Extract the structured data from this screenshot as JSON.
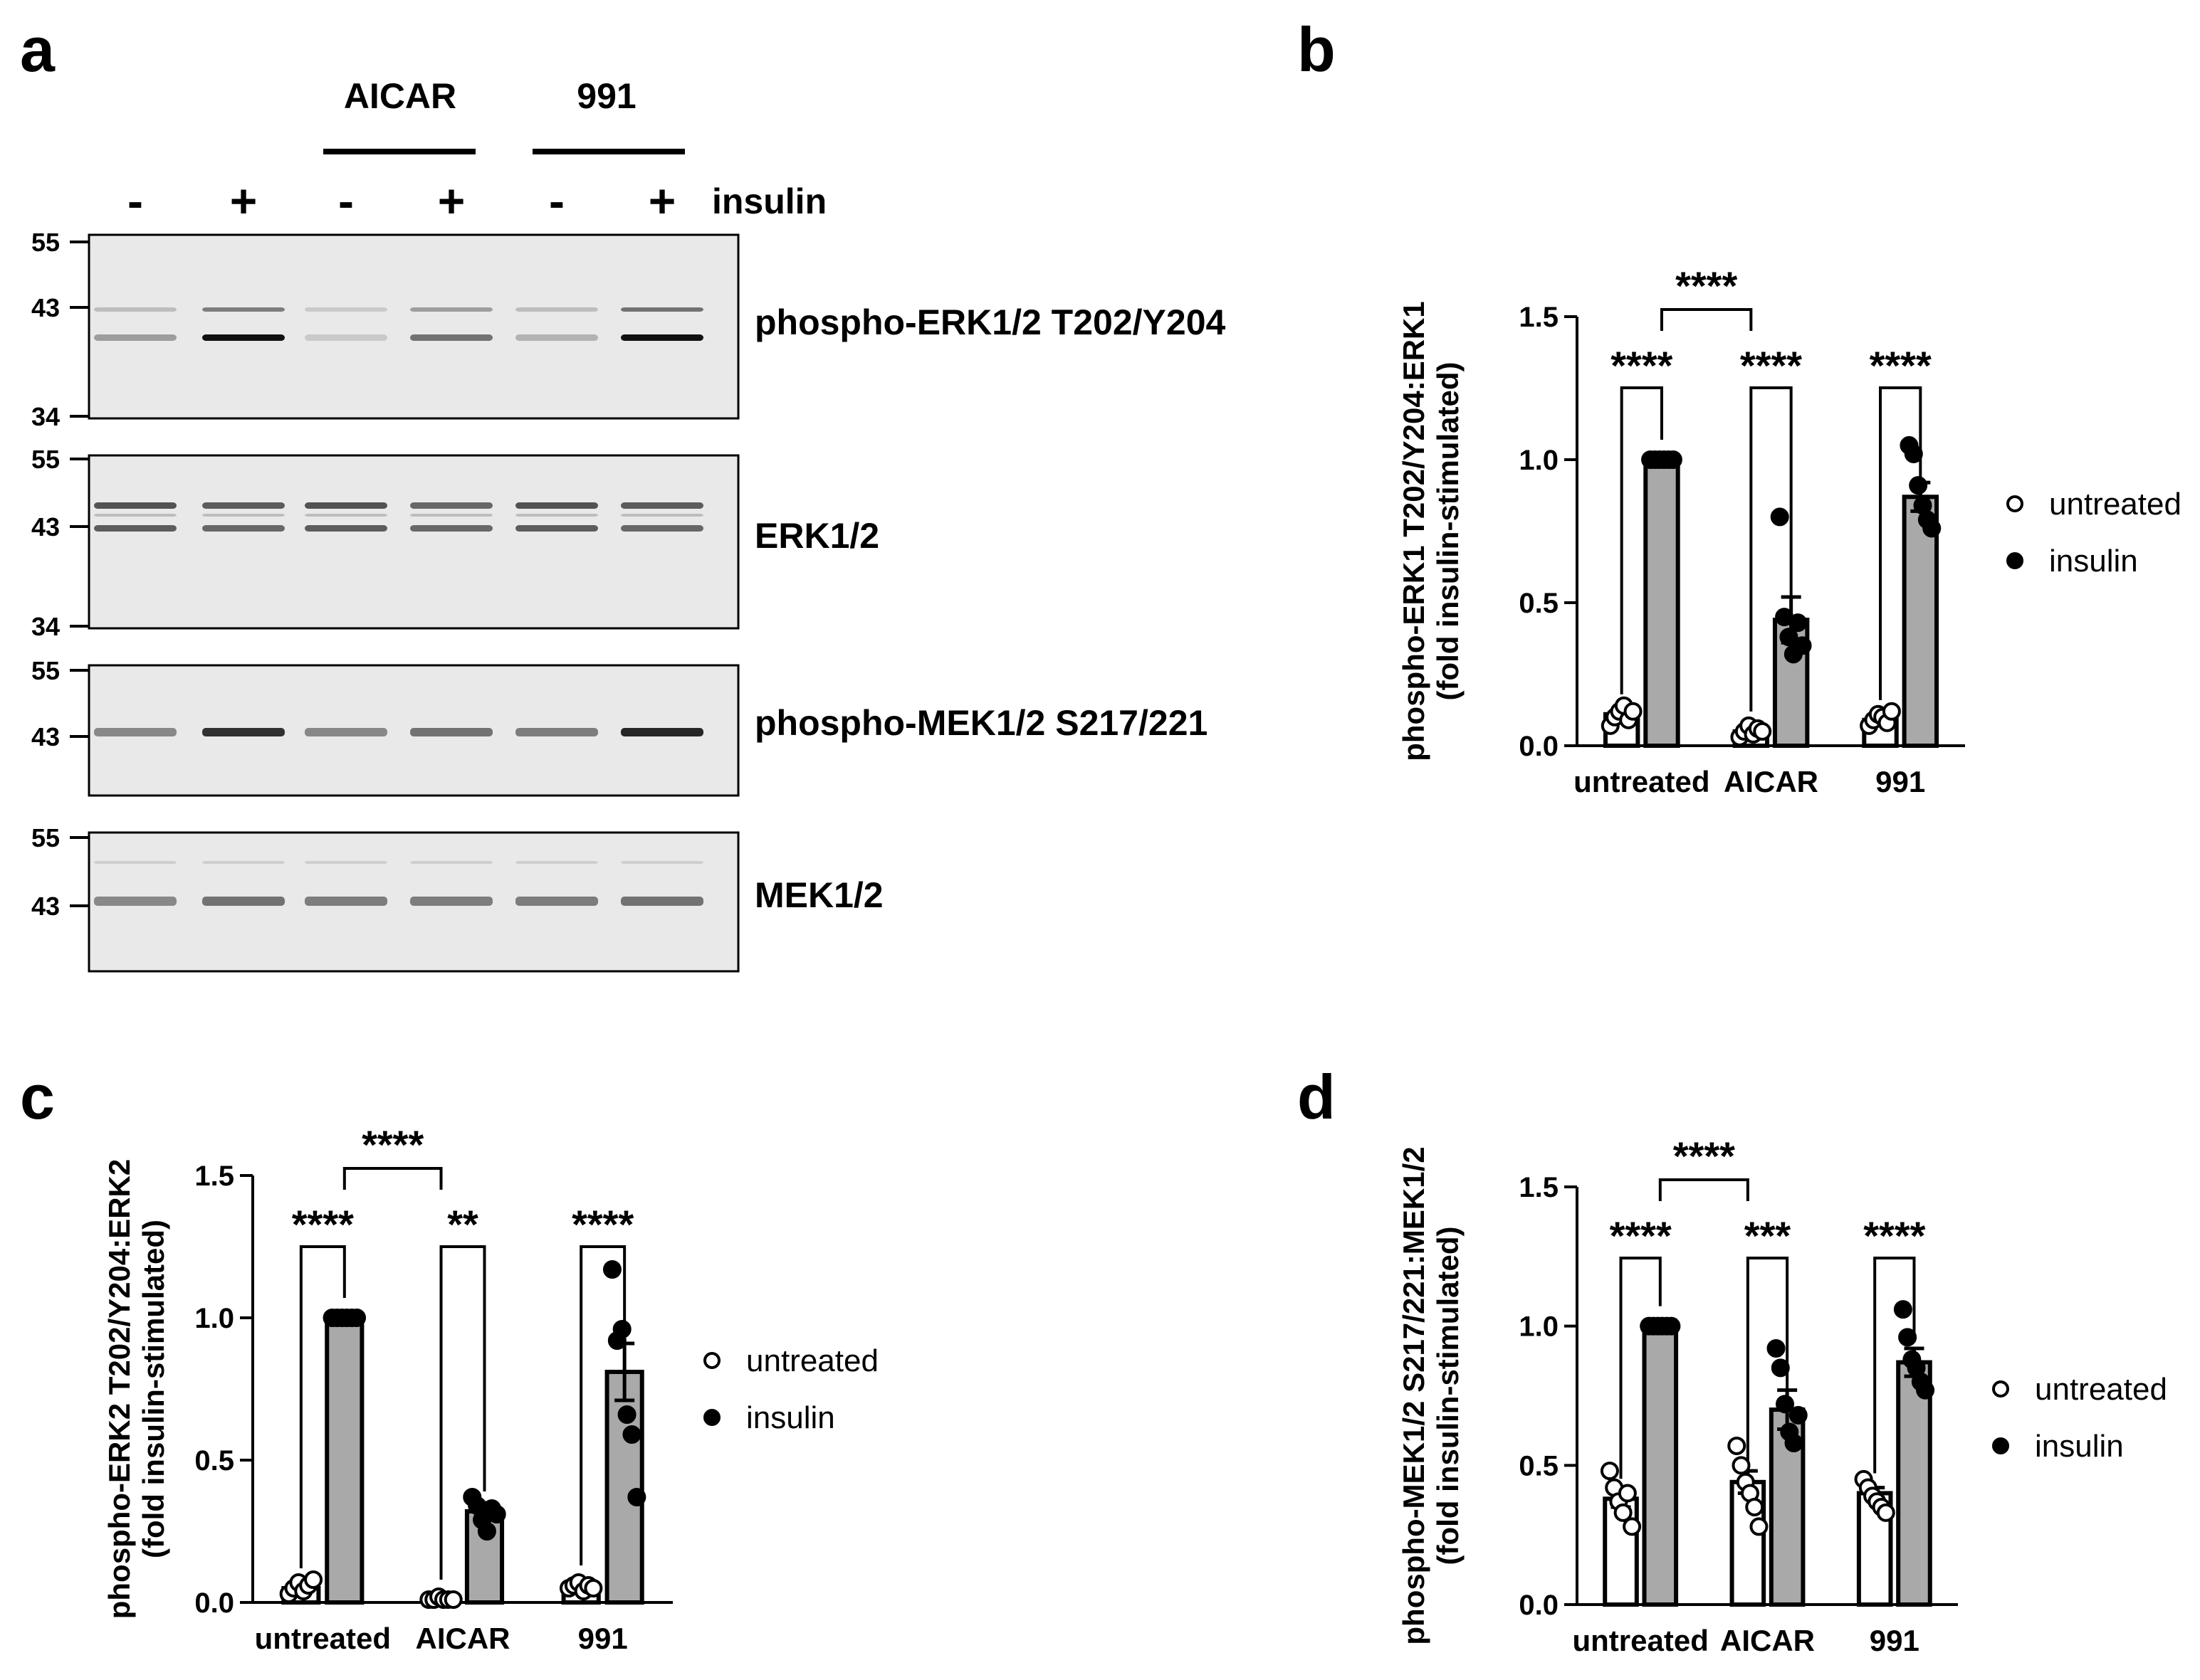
{
  "panels": {
    "a": "a",
    "b": "b",
    "c": "c",
    "d": "d"
  },
  "blot": {
    "group_headers": [
      "AICAR",
      "991"
    ],
    "insulin_signs": [
      "-",
      "+",
      "-",
      "+",
      "-",
      "+"
    ],
    "insulin_label": "insulin",
    "blots": [
      {
        "label": "phospho-ERK1/2 T202/Y204",
        "markers": [
          "55",
          "43",
          "34"
        ]
      },
      {
        "label": "ERK1/2",
        "markers": [
          "55",
          "43",
          "34"
        ]
      },
      {
        "label": "phospho-MEK1/2 S217/221",
        "markers": [
          "55",
          "43"
        ]
      },
      {
        "label": "MEK1/2",
        "markers": [
          "55",
          "43"
        ]
      }
    ],
    "colors": {
      "blot_bg": "#e6e6e6",
      "band": "#1a1a1a"
    }
  },
  "chart_data": [
    {
      "panel": "b",
      "type": "bar",
      "ylabel": "phospho-ERK1 T202/Y204:ERK1",
      "ylabel2": "(fold insulin-stimulated)",
      "categories": [
        "untreated",
        "AICAR",
        "991"
      ],
      "ylim": [
        0,
        1.5
      ],
      "yticks": [
        "0.0",
        "0.5",
        "1.0",
        "1.5"
      ],
      "series": [
        {
          "name": "untreated",
          "values": [
            0.11,
            0.05,
            0.09
          ],
          "sem": [
            0.015,
            0.012,
            0.012
          ],
          "points": [
            [
              0.07,
              0.1,
              0.12,
              0.14,
              0.09,
              0.12
            ],
            [
              0.03,
              0.05,
              0.07,
              0.04,
              0.06,
              0.05
            ],
            [
              0.07,
              0.09,
              0.11,
              0.1,
              0.08,
              0.12
            ]
          ]
        },
        {
          "name": "insulin",
          "values": [
            1.0,
            0.44,
            0.87
          ],
          "sem": [
            0,
            0.08,
            0.05
          ],
          "points": [
            [
              1.0,
              1.0,
              1.0,
              1.0,
              1.0,
              1.0
            ],
            [
              0.8,
              0.45,
              0.38,
              0.32,
              0.43,
              0.35
            ],
            [
              1.05,
              1.02,
              0.91,
              0.84,
              0.79,
              0.76
            ]
          ]
        }
      ],
      "significance": [
        {
          "text": "****",
          "type": "within",
          "group": 0
        },
        {
          "text": "****",
          "type": "within",
          "group": 1
        },
        {
          "text": "****",
          "type": "within",
          "group": 2
        },
        {
          "text": "****",
          "type": "between",
          "from": 0,
          "to": 1
        }
      ],
      "legend": {
        "position": "right",
        "entries": [
          "untreated",
          "insulin"
        ]
      }
    },
    {
      "panel": "c",
      "type": "bar",
      "ylabel": "phospho-ERK2 T202/Y204:ERK2",
      "ylabel2": "(fold insulin-stimulated)",
      "categories": [
        "untreated",
        "AICAR",
        "991"
      ],
      "ylim": [
        0,
        1.5
      ],
      "yticks": [
        "0.0",
        "0.5",
        "1.0",
        "1.5"
      ],
      "series": [
        {
          "name": "untreated",
          "values": [
            0.05,
            0.01,
            0.06
          ],
          "sem": [
            0.01,
            0.005,
            0.01
          ],
          "points": [
            [
              0.03,
              0.05,
              0.07,
              0.04,
              0.06,
              0.08
            ],
            [
              0.01,
              0.01,
              0.02,
              0.01,
              0.01,
              0.01
            ],
            [
              0.05,
              0.06,
              0.07,
              0.04,
              0.06,
              0.05
            ]
          ]
        },
        {
          "name": "insulin",
          "values": [
            1.0,
            0.32,
            0.81
          ],
          "sem": [
            0,
            0.03,
            0.1
          ],
          "points": [
            [
              1.0,
              1.0,
              1.0,
              1.0,
              1.0,
              1.0
            ],
            [
              0.37,
              0.34,
              0.29,
              0.25,
              0.33,
              0.31
            ],
            [
              1.17,
              0.92,
              0.96,
              0.66,
              0.59,
              0.37
            ]
          ]
        }
      ],
      "significance": [
        {
          "text": "****",
          "type": "within",
          "group": 0
        },
        {
          "text": "**",
          "type": "within",
          "group": 1
        },
        {
          "text": "****",
          "type": "within",
          "group": 2
        },
        {
          "text": "****",
          "type": "between",
          "from": 0,
          "to": 1
        }
      ],
      "legend": {
        "position": "right",
        "entries": [
          "untreated",
          "insulin"
        ]
      }
    },
    {
      "panel": "d",
      "type": "bar",
      "ylabel": "phospho-MEK1/2 S217/221:MEK1/2",
      "ylabel2": "(fold insulin-stimulated)",
      "categories": [
        "untreated",
        "AICAR",
        "991"
      ],
      "ylim": [
        0,
        1.5
      ],
      "yticks": [
        "0.0",
        "0.5",
        "1.0",
        "1.5"
      ],
      "series": [
        {
          "name": "untreated",
          "values": [
            0.38,
            0.44,
            0.4
          ],
          "sem": [
            0.03,
            0.04,
            0.02
          ],
          "points": [
            [
              0.48,
              0.42,
              0.37,
              0.33,
              0.4,
              0.28
            ],
            [
              0.57,
              0.5,
              0.44,
              0.4,
              0.35,
              0.28
            ],
            [
              0.45,
              0.42,
              0.39,
              0.37,
              0.35,
              0.33
            ]
          ]
        },
        {
          "name": "insulin",
          "values": [
            1.0,
            0.7,
            0.87
          ],
          "sem": [
            0,
            0.07,
            0.05
          ],
          "points": [
            [
              1.0,
              1.0,
              1.0,
              1.0,
              1.0,
              1.0
            ],
            [
              0.92,
              0.85,
              0.72,
              0.62,
              0.58,
              0.68
            ],
            [
              1.06,
              0.96,
              0.88,
              0.85,
              0.8,
              0.77
            ]
          ]
        }
      ],
      "significance": [
        {
          "text": "****",
          "type": "within",
          "group": 0
        },
        {
          "text": "***",
          "type": "within",
          "group": 1
        },
        {
          "text": "****",
          "type": "within",
          "group": 2
        },
        {
          "text": "****",
          "type": "between",
          "from": 0,
          "to": 1
        }
      ],
      "legend": {
        "position": "right",
        "entries": [
          "untreated",
          "insulin"
        ]
      }
    }
  ],
  "colors": {
    "bar_fill": "#a9a9a9",
    "untreated_bar_fill": "#ffffff",
    "stroke": "#000000"
  }
}
